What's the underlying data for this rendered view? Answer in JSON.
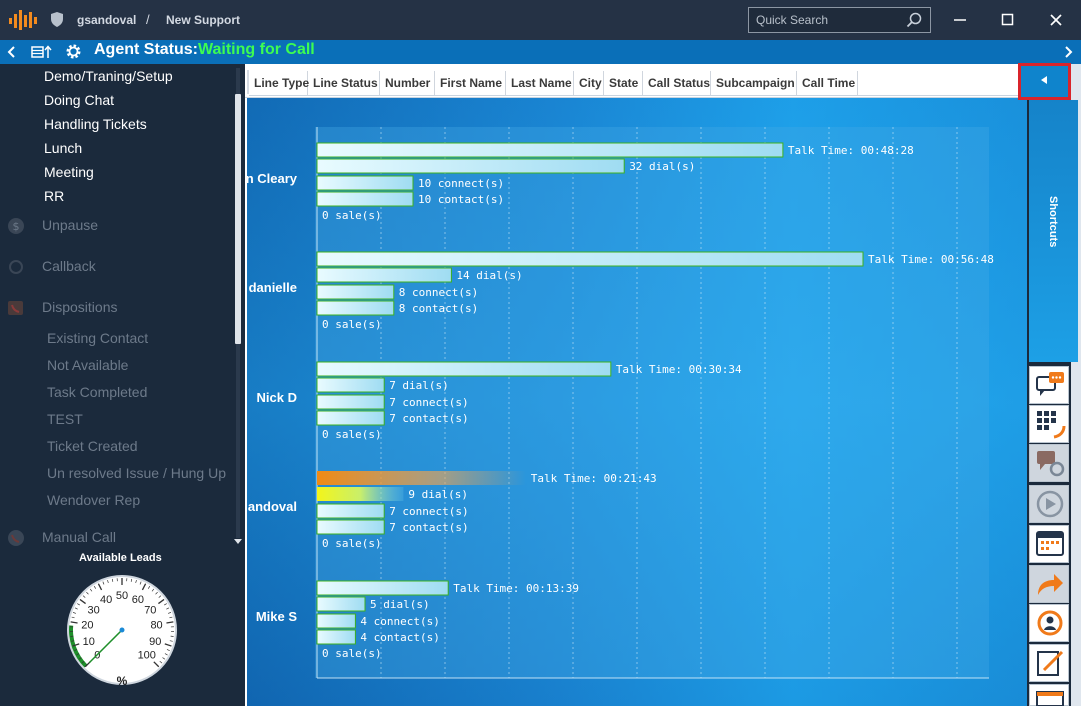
{
  "titlebar": {
    "username": "gsandoval",
    "separator": "/",
    "campaign": "New Support",
    "search_placeholder": "Quick Search",
    "icons": [
      "app-logo-icon",
      "shield-icon",
      "search-icon",
      "minimize-icon",
      "maximize-icon",
      "close-icon"
    ]
  },
  "status_bar": {
    "label": "Agent Status:",
    "value": "Waiting for Call",
    "value_color": "#3dfc52",
    "icons": [
      "chevron-left-icon",
      "layout-icon",
      "gear-icon",
      "chevron-right-icon"
    ]
  },
  "sidebar": {
    "status_items": [
      "Demo/Traning/Setup",
      "Doing Chat",
      "Handling Tickets",
      "Lunch",
      "Meeting",
      "RR"
    ],
    "unpause": "Unpause",
    "callback": "Callback",
    "dispositions": "Dispositions",
    "disposition_items": [
      "Existing Contact",
      "Not Available",
      "Task Completed",
      "TEST",
      "Ticket Created",
      "Un resolved Issue / Hung Up",
      "Wendover Rep"
    ],
    "manual_call": "Manual Call"
  },
  "available_leads": {
    "title": "Available Leads",
    "value_percent": 0,
    "tick_labels": [
      "0",
      "10",
      "20",
      "30",
      "40",
      "50",
      "60",
      "70",
      "80",
      "90",
      "100"
    ],
    "unit": "%"
  },
  "grid": {
    "columns": [
      "Line Type",
      "Line Status",
      "Number",
      "First Name",
      "Last Name",
      "City",
      "State",
      "Call Status",
      "Subcampaign",
      "Call Time"
    ]
  },
  "right_panel": {
    "shortcuts_label": "Shortcuts",
    "icons": [
      "chat-icon",
      "dialpad-phone-icon",
      "chat-settings-icon",
      "play-icon",
      "calendar-icon",
      "transfer-icon",
      "refresh-user-icon",
      "edit-icon",
      "grid-calendar-icon"
    ]
  },
  "chart_data": {
    "type": "bar",
    "agents": [
      {
        "name": "n Cleary",
        "talk_time": "Talk Time: 00:48:28",
        "talk_seconds": 2908,
        "dials": 32,
        "connects": 10,
        "contacts": 10,
        "sales": 0
      },
      {
        "name": "danielle",
        "talk_time": "Talk Time: 00:56:48",
        "talk_seconds": 3408,
        "dials": 14,
        "connects": 8,
        "contacts": 8,
        "sales": 0
      },
      {
        "name": "Nick D",
        "talk_time": "Talk Time: 00:30:34",
        "talk_seconds": 1834,
        "dials": 7,
        "connects": 7,
        "contacts": 7,
        "sales": 0
      },
      {
        "name": "andoval",
        "talk_time": "Talk Time: 00:21:43",
        "talk_seconds": 1303,
        "dials": 9,
        "connects": 7,
        "contacts": 7,
        "sales": 0,
        "highlight": true
      },
      {
        "name": "Mike S",
        "talk_time": "Talk Time: 00:13:39",
        "talk_seconds": 819,
        "dials": 5,
        "connects": 4,
        "contacts": 4,
        "sales": 0
      }
    ],
    "metric_suffixes": {
      "dials": " dial(s)",
      "connects": " connect(s)",
      "contacts": " contact(s)",
      "sales": " sale(s)"
    },
    "grid": true
  }
}
